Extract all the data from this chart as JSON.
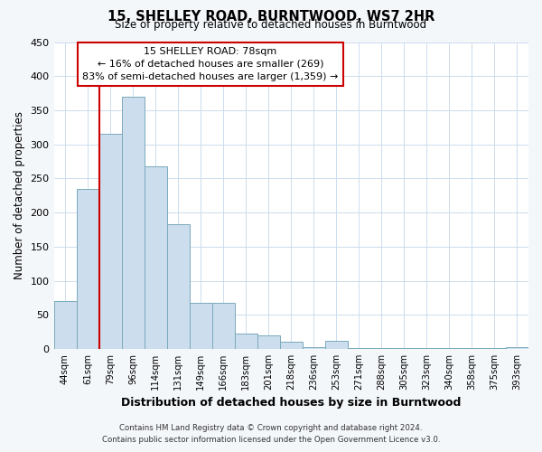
{
  "title": "15, SHELLEY ROAD, BURNTWOOD, WS7 2HR",
  "subtitle": "Size of property relative to detached houses in Burntwood",
  "xlabel": "Distribution of detached houses by size in Burntwood",
  "ylabel": "Number of detached properties",
  "bar_labels": [
    "44sqm",
    "61sqm",
    "79sqm",
    "96sqm",
    "114sqm",
    "131sqm",
    "149sqm",
    "166sqm",
    "183sqm",
    "201sqm",
    "218sqm",
    "236sqm",
    "253sqm",
    "271sqm",
    "288sqm",
    "305sqm",
    "323sqm",
    "340sqm",
    "358sqm",
    "375sqm",
    "393sqm"
  ],
  "bar_values": [
    70,
    235,
    315,
    370,
    268,
    183,
    68,
    68,
    23,
    20,
    10,
    3,
    12,
    1,
    1,
    1,
    1,
    1,
    1,
    1,
    2
  ],
  "bar_color": "#ccdded",
  "bar_edgecolor": "#7aaabb",
  "property_label": "15 SHELLEY ROAD: 78sqm",
  "annotation_line1": "← 16% of detached houses are smaller (269)",
  "annotation_line2": "83% of semi-detached houses are larger (1,359) →",
  "vline_color": "#cc0000",
  "ylim": [
    0,
    450
  ],
  "yticks": [
    0,
    50,
    100,
    150,
    200,
    250,
    300,
    350,
    400,
    450
  ],
  "footnote1": "Contains HM Land Registry data © Crown copyright and database right 2024.",
  "footnote2": "Contains public sector information licensed under the Open Government Licence v3.0.",
  "bg_color": "#f4f7fa",
  "plot_bg_color": "#ffffff",
  "annotation_box_edgecolor": "#cc0000",
  "grid_color": "#ccddee"
}
